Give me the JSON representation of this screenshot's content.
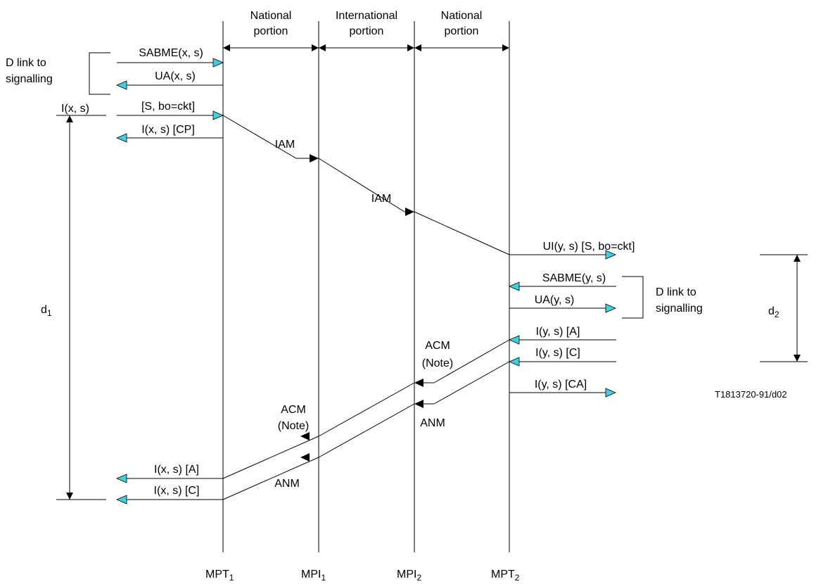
{
  "figure_ref": "T1813720-91/d02",
  "colors": {
    "line": "#000000",
    "open_arrow_fill": "#3fd0e0",
    "filled_arrow": "#000000"
  },
  "headers": {
    "national_left": [
      "National",
      "portion"
    ],
    "international": [
      "International",
      "portion"
    ],
    "national_right": [
      "National",
      "portion"
    ]
  },
  "nodes": {
    "mpt1": {
      "base": "MPT",
      "sub": "1"
    },
    "mpi1": {
      "base": "MPI",
      "sub": "1"
    },
    "mpi2": {
      "base": "MPI",
      "sub": "2"
    },
    "mpt2": {
      "base": "MPT",
      "sub": "2"
    }
  },
  "left": {
    "d_link": [
      "D link to",
      "signalling"
    ],
    "ix_s": "I(x, s)",
    "d1": {
      "base": "d",
      "sub": "1"
    },
    "sabme": "SABME(x, s)",
    "ua": "UA(x, s)",
    "s_bo": "[S, bo=ckt]",
    "i_cp": "I(x, s) [CP]",
    "i_a": "I(x, s) [A]",
    "i_c": "I(x, s) [C]"
  },
  "right": {
    "ui": "UI(y, s) [S, bo=ckt]",
    "sabme": "SABME(y, s)",
    "ua": "UA(y, s)",
    "i_a": "I(y, s) [A]",
    "i_c": "I(y, s) [C]",
    "i_ca": "I(y, s) [CA]",
    "d_link": [
      "D link to",
      "signalling"
    ],
    "d2": {
      "base": "d",
      "sub": "2"
    }
  },
  "messages": {
    "iam_1": "IAM",
    "iam_2": "IAM",
    "acm_right": [
      "ACM",
      "(Note)"
    ],
    "anm_right": "ANM",
    "acm_left": [
      "ACM",
      "(Note)"
    ],
    "anm_left": "ANM"
  }
}
